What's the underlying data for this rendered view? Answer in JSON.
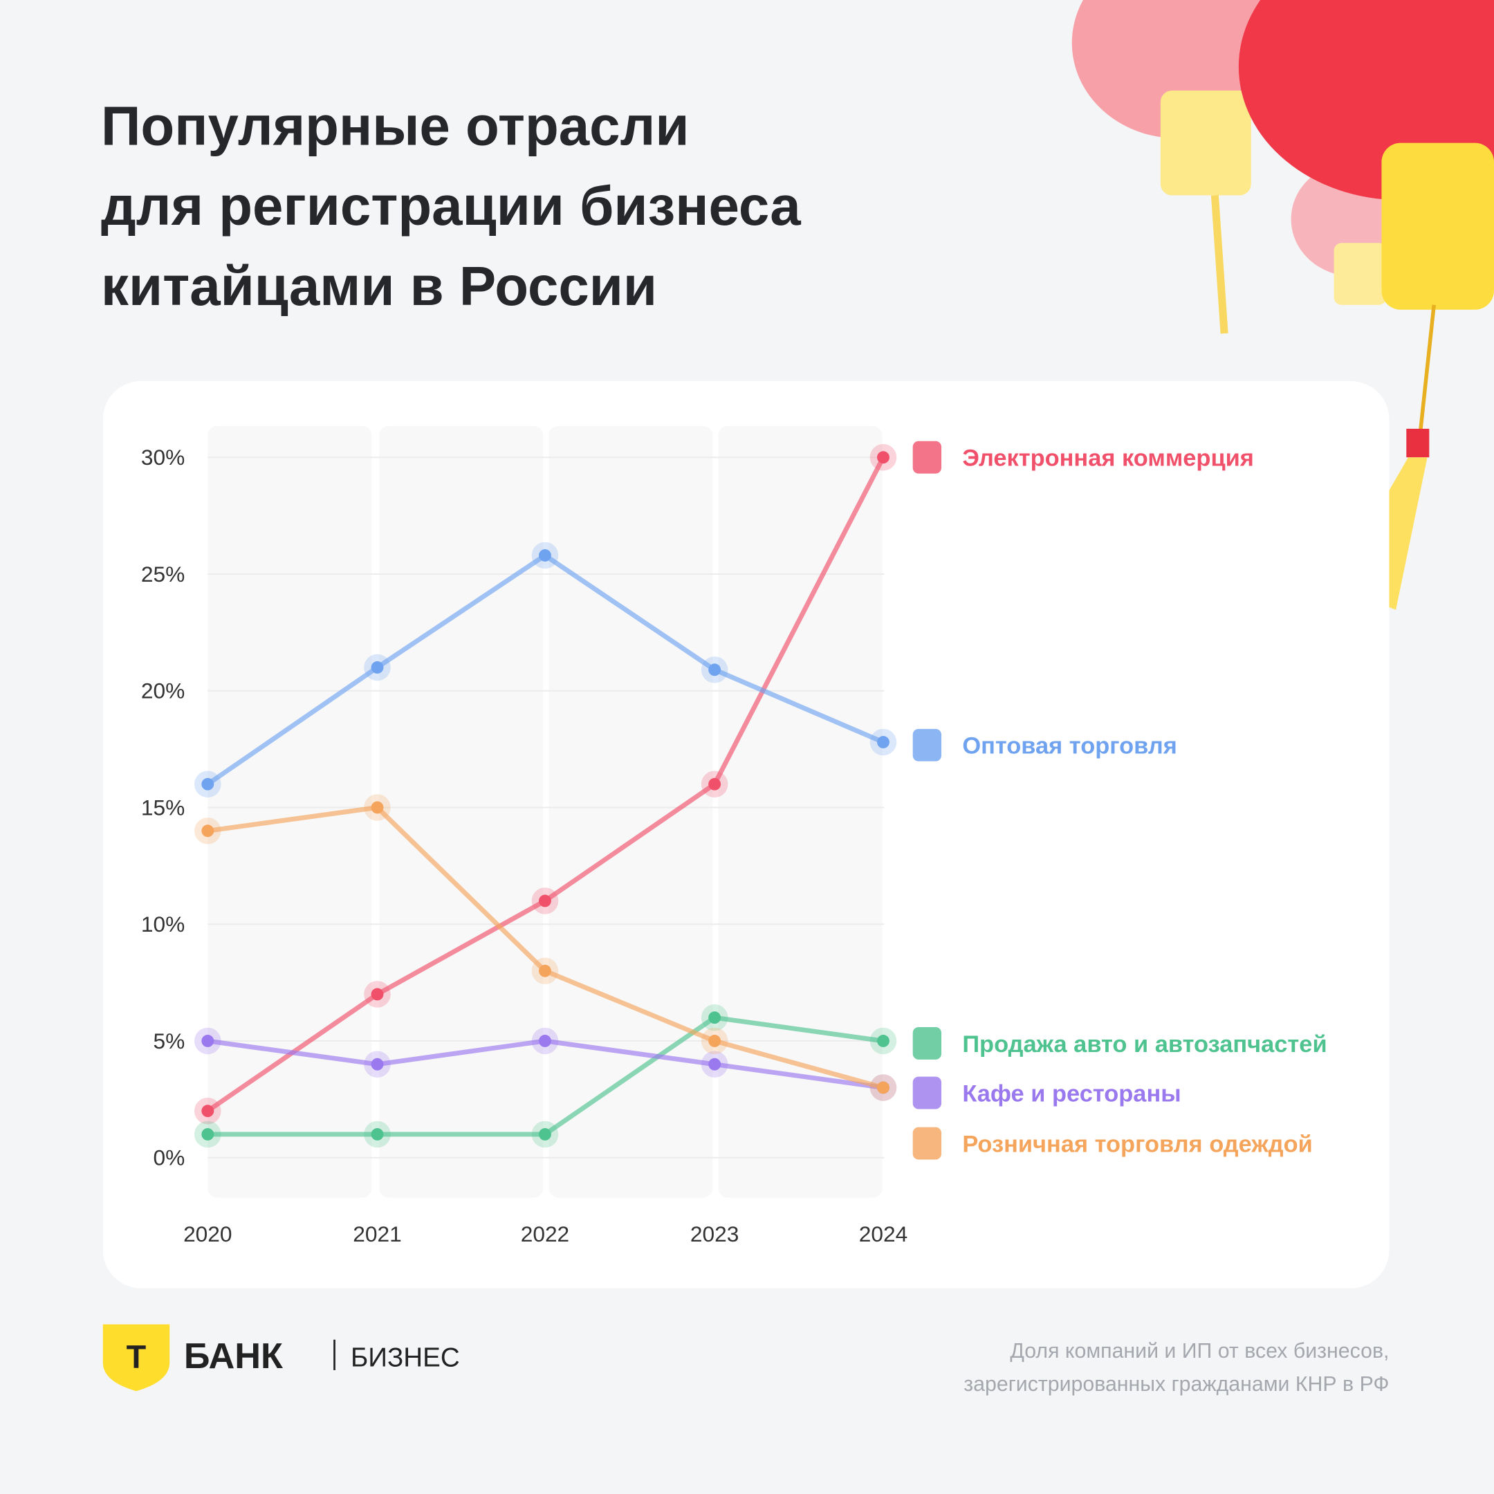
{
  "chart_data": {
    "type": "line",
    "title": [
      "Популярные отрасли",
      "для регистрации бизнеса",
      "китайцами в России"
    ],
    "categories": [
      "2020",
      "2021",
      "2022",
      "2023",
      "2024"
    ],
    "series": [
      {
        "name": "Электронная коммерция",
        "color": "#f0506a",
        "values": [
          2,
          7,
          11,
          16,
          30
        ]
      },
      {
        "name": "Оптовая торговля",
        "color": "#6fa3f0",
        "values": [
          16,
          21,
          25.8,
          20.9,
          17.8
        ]
      },
      {
        "name": "Продажа авто и автозапчастей",
        "color": "#4fc38f",
        "values": [
          1,
          1,
          1,
          6,
          5
        ]
      },
      {
        "name": "Кафе и рестораны",
        "color": "#9a78ee",
        "values": [
          5,
          4,
          5,
          4,
          3
        ]
      },
      {
        "name": "Розничная торговля одеждой",
        "color": "#f5a45c",
        "values": [
          14,
          15,
          8,
          5,
          3
        ]
      }
    ],
    "ylim": [
      0,
      30
    ],
    "yticks": [
      {
        "value": 0,
        "label": "0%"
      },
      {
        "value": 5,
        "label": "5%"
      },
      {
        "value": 10,
        "label": "10%"
      },
      {
        "value": 15,
        "label": "15%"
      },
      {
        "value": 20,
        "label": "20%"
      },
      {
        "value": 25,
        "label": "25%"
      },
      {
        "value": 30,
        "label": "30%"
      }
    ],
    "grid": true
  },
  "brand": {
    "mark": "Т",
    "name": "БАНК",
    "product": "БИЗНЕС"
  },
  "footnote": [
    "Доля компаний и ИП от всех бизнесов,",
    "зарегистрированных гражданами КНР в РФ"
  ]
}
